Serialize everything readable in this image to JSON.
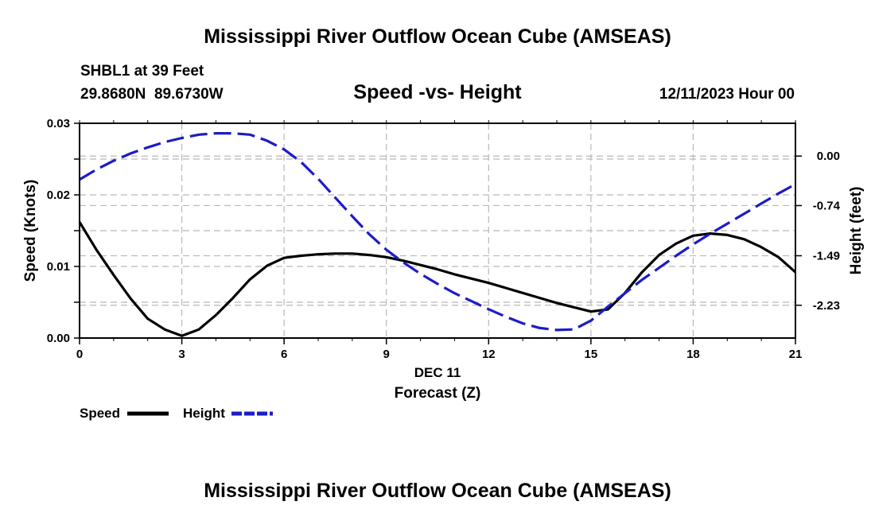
{
  "page": {
    "title": "Mississippi River Outflow Ocean Cube (AMSEAS)",
    "footer_title": "Mississippi River Outflow Ocean Cube (AMSEAS)"
  },
  "station": {
    "name_line": "SHBL1 at 39 Feet",
    "coords_line": "29.8680N  89.6730W",
    "datetime_line": "12/11/2023 Hour 00"
  },
  "chart_data": {
    "type": "line",
    "title": "Speed -vs- Height",
    "xlabel": "Forecast (Z)",
    "date_label": "DEC 11",
    "ylabel": "Speed (Knots)",
    "y2label": "Height (feet)",
    "xlim": [
      0,
      21
    ],
    "ylim": [
      0,
      0.03
    ],
    "y2lim": [
      0.49,
      -2.72
    ],
    "x_ticks": [
      0,
      3,
      6,
      9,
      12,
      15,
      18,
      21
    ],
    "x_tick_labels": [
      "0",
      "3",
      "6",
      "9",
      "12",
      "15",
      "18",
      "21"
    ],
    "y_ticks": [
      0,
      0.005,
      0.01,
      0.015,
      0.02,
      0.025,
      0.03
    ],
    "y_tick_labels": [
      "0.00",
      "",
      "0.01",
      "",
      "0.02",
      "",
      "0.03"
    ],
    "y_tick_label_values": [
      0,
      0.01,
      0.02,
      0.03
    ],
    "y_tick_label_texts": [
      "0.00",
      "0.01",
      "0.02",
      "0.03"
    ],
    "y2_ticks": [
      0.0,
      -0.74,
      -1.49,
      -2.23
    ],
    "y2_tick_labels": [
      "0.00",
      "-0.74",
      "-1.49",
      "-2.23"
    ],
    "grid": true,
    "legend": [
      "Speed",
      "Height"
    ],
    "legend_position": "bottom-left",
    "series": [
      {
        "name": "Speed",
        "axis": "left",
        "color": "#000000",
        "style": "solid",
        "x": [
          0,
          0.5,
          1,
          1.5,
          2,
          2.5,
          3,
          3.5,
          4,
          4.5,
          5,
          5.5,
          6,
          6.5,
          7,
          7.5,
          8,
          8.5,
          9,
          9.5,
          10,
          10.5,
          11,
          11.5,
          12,
          12.5,
          13,
          13.5,
          14,
          14.5,
          15,
          15.5,
          16,
          16.5,
          17,
          17.5,
          18,
          18.5,
          19,
          19.5,
          20,
          20.5,
          21
        ],
        "values": [
          0.0162,
          0.0123,
          0.0088,
          0.0055,
          0.0027,
          0.0012,
          0.0003,
          0.0012,
          0.0032,
          0.0056,
          0.0082,
          0.0101,
          0.0112,
          0.0115,
          0.0117,
          0.0118,
          0.0118,
          0.0116,
          0.0113,
          0.0108,
          0.0102,
          0.0096,
          0.0089,
          0.0083,
          0.0077,
          0.007,
          0.0063,
          0.0056,
          0.0049,
          0.0043,
          0.0037,
          0.004,
          0.0063,
          0.0092,
          0.0116,
          0.0132,
          0.0143,
          0.0146,
          0.0144,
          0.0138,
          0.0127,
          0.0113,
          0.0092
        ]
      },
      {
        "name": "Height",
        "axis": "right",
        "color": "#1c1cc8",
        "style": "dashed",
        "x": [
          0,
          0.5,
          1,
          1.5,
          2,
          2.5,
          3,
          3.5,
          4,
          4.5,
          5,
          5.5,
          6,
          6.5,
          7,
          7.5,
          8,
          8.5,
          9,
          9.5,
          10,
          10.5,
          11,
          11.5,
          12,
          12.5,
          13,
          13.5,
          14,
          14.5,
          15,
          15.5,
          16,
          16.5,
          17,
          17.5,
          18,
          18.5,
          19,
          19.5,
          20,
          20.5,
          21
        ],
        "values": [
          -0.35,
          -0.2,
          -0.07,
          0.04,
          0.13,
          0.21,
          0.27,
          0.32,
          0.34,
          0.34,
          0.32,
          0.23,
          0.1,
          -0.09,
          -0.34,
          -0.62,
          -0.9,
          -1.17,
          -1.4,
          -1.59,
          -1.76,
          -1.91,
          -2.05,
          -2.17,
          -2.29,
          -2.4,
          -2.5,
          -2.57,
          -2.6,
          -2.59,
          -2.46,
          -2.25,
          -2.05,
          -1.85,
          -1.67,
          -1.49,
          -1.32,
          -1.16,
          -1.01,
          -0.86,
          -0.71,
          -0.56,
          -0.42
        ]
      }
    ]
  }
}
